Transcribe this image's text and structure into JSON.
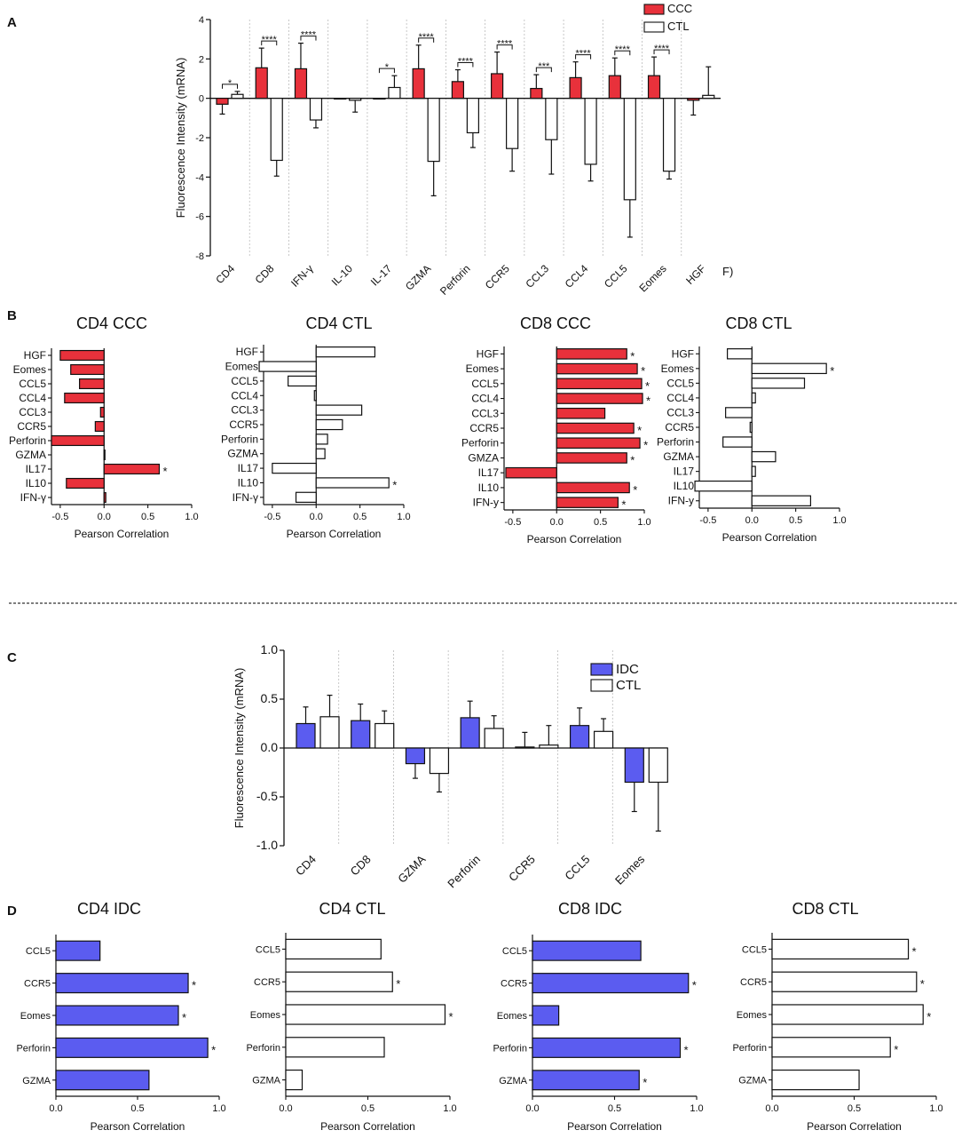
{
  "colors": {
    "ccc": "#e8313b",
    "idc": "#5b5cf0",
    "ctl": "#ffffff",
    "axis": "#111111"
  },
  "panel_labels": {
    "a": "A",
    "b": "B",
    "c": "C",
    "d": "D"
  },
  "chart_data": [
    {
      "id": "A",
      "type": "bar",
      "title": "",
      "ylabel": "Fluorescence Intensity (mRNA)",
      "ylim": [
        -8,
        4
      ],
      "yticks": [
        -8,
        -6,
        -4,
        -2,
        0,
        2,
        4
      ],
      "categories": [
        "CD4",
        "CD8",
        "IFN-γ",
        "IL-10",
        "IL-17",
        "GZMA",
        "Perforin",
        "CCR5",
        "CCL3",
        "CCL4",
        "CCL5",
        "Eomes",
        "HGF"
      ],
      "extra_label": "F)",
      "series": [
        {
          "name": "CCC",
          "values": [
            -0.3,
            1.55,
            1.5,
            0,
            0,
            1.5,
            0.85,
            1.25,
            0.5,
            1.05,
            1.15,
            1.15,
            -0.1
          ],
          "errors": [
            0.5,
            1.0,
            1.3,
            0,
            0,
            1.2,
            0.6,
            1.1,
            0.7,
            0.8,
            0.9,
            0.95,
            0.75
          ]
        },
        {
          "name": "CTL",
          "values": [
            0.2,
            -3.15,
            -1.1,
            -0.1,
            0.55,
            -3.2,
            -1.75,
            -2.55,
            -2.1,
            -3.35,
            -5.15,
            -3.7,
            0.15
          ],
          "errors": [
            0.15,
            0.8,
            0.4,
            0.6,
            0.6,
            1.75,
            0.75,
            1.15,
            1.75,
            0.85,
            1.9,
            0.4,
            1.45
          ]
        }
      ],
      "significance": [
        "*",
        "****",
        "****",
        "",
        "*",
        "****",
        "****",
        "****",
        "***",
        "****",
        "****",
        "****",
        ""
      ]
    },
    {
      "id": "B1",
      "type": "bar",
      "title": "CD4 CCC",
      "group": "CCC",
      "xlabel": "Pearson Correlation",
      "xlim": [
        -0.6,
        1.0
      ],
      "xticks": [
        "-0.5",
        "0.0",
        "0.5",
        "1.0"
      ],
      "categories": [
        "HGF",
        "Eomes",
        "CCL5",
        "CCL4",
        "CCL3",
        "CCR5",
        "Perforin",
        "GZMA",
        "IL17",
        "IL10",
        "IFN-γ"
      ],
      "values": [
        -0.5,
        -0.38,
        -0.28,
        -0.45,
        -0.04,
        -0.1,
        -0.6,
        0.0,
        0.63,
        -0.43,
        0.02
      ],
      "significance": [
        "",
        "",
        "",
        "",
        "",
        "",
        "",
        "",
        "*",
        "",
        ""
      ]
    },
    {
      "id": "B2",
      "type": "bar",
      "title": "CD4 CTL",
      "group": "CTL",
      "xlabel": "Pearson Correlation",
      "xlim": [
        -0.6,
        1.0
      ],
      "xticks": [
        "-0.5",
        "0.0",
        "0.5",
        "1.0"
      ],
      "categories": [
        "HGF",
        "Eomes",
        "CCL5",
        "CCL4",
        "CCL3",
        "CCR5",
        "Perforin",
        "GZMA",
        "IL17",
        "IL10",
        "IFN-γ"
      ],
      "values": [
        0.67,
        -0.65,
        -0.32,
        -0.02,
        0.52,
        0.3,
        0.13,
        0.1,
        -0.5,
        0.83,
        -0.23
      ],
      "significance": [
        "",
        "",
        "",
        "",
        "",
        "",
        "",
        "",
        "",
        "*",
        ""
      ]
    },
    {
      "id": "B3",
      "type": "bar",
      "title": "CD8 CCC",
      "group": "CCC",
      "xlabel": "Pearson Correlation",
      "xlim": [
        -0.6,
        1.0
      ],
      "xticks": [
        "-0.5",
        "0.0",
        "0.5",
        "1.0"
      ],
      "categories": [
        "HGF",
        "Eomes",
        "CCL5",
        "CCL4",
        "CCL3",
        "CCR5",
        "Perforin",
        "GMZA",
        "IL17",
        "IL10",
        "IFN-y"
      ],
      "values": [
        0.8,
        0.92,
        0.97,
        0.98,
        0.55,
        0.88,
        0.95,
        0.8,
        -0.58,
        0.83,
        0.7
      ],
      "significance": [
        "*",
        "*",
        "*",
        "*",
        "",
        "*",
        "*",
        "*",
        "",
        "*",
        "*"
      ]
    },
    {
      "id": "B4",
      "type": "bar",
      "title": "CD8 CTL",
      "group": "CTL",
      "xlabel": "Pearson Correlation",
      "xlim": [
        -0.6,
        1.0
      ],
      "xticks": [
        "-0.5",
        "0.0",
        "0.5",
        "1.0"
      ],
      "categories": [
        "HGF",
        "Eomes",
        "CCL5",
        "CCL4",
        "CCL3",
        "CCR5",
        "Perforin",
        "GZMA",
        "IL17",
        "IL10",
        "IFN-y"
      ],
      "values": [
        -0.28,
        0.85,
        0.6,
        0.04,
        -0.3,
        -0.02,
        -0.33,
        0.27,
        0.04,
        -0.65,
        0.67
      ],
      "significance": [
        "",
        "*",
        "",
        "",
        "",
        "",
        "",
        "",
        "",
        "",
        ""
      ]
    },
    {
      "id": "C",
      "type": "bar",
      "title": "",
      "ylabel": "Fluorescence Intensity (mRNA)",
      "ylim": [
        -1.0,
        1.0
      ],
      "yticks": [
        "-1.0",
        "-0.5",
        "0.0",
        "0.5",
        "1.0"
      ],
      "categories": [
        "CD4",
        "CD8",
        "GZMA",
        "Perforin",
        "CCR5",
        "CCL5",
        "Eomes"
      ],
      "series": [
        {
          "name": "IDC",
          "values": [
            0.25,
            0.28,
            -0.16,
            0.31,
            0.01,
            0.23,
            -0.35
          ],
          "errors": [
            0.17,
            0.17,
            0.15,
            0.17,
            0.15,
            0.18,
            0.3
          ]
        },
        {
          "name": "CTL",
          "values": [
            0.32,
            0.25,
            -0.26,
            0.2,
            0.03,
            0.17,
            -0.35
          ],
          "errors": [
            0.22,
            0.13,
            0.19,
            0.13,
            0.2,
            0.13,
            0.5
          ]
        }
      ]
    },
    {
      "id": "D1",
      "type": "bar",
      "title": "CD4 IDC",
      "group": "IDC",
      "xlabel": "Pearson Correlation",
      "xlim": [
        0,
        1.0
      ],
      "xticks": [
        "0.0",
        "0.5",
        "1.0"
      ],
      "categories": [
        "CCL5",
        "CCR5",
        "Eomes",
        "Perforin",
        "GZMA"
      ],
      "values": [
        0.27,
        0.81,
        0.75,
        0.93,
        0.57
      ],
      "significance": [
        "",
        "*",
        "*",
        "*",
        ""
      ]
    },
    {
      "id": "D2",
      "type": "bar",
      "title": "CD4 CTL",
      "group": "CTL",
      "xlabel": "Pearson Correlation",
      "xlim": [
        0,
        1.0
      ],
      "xticks": [
        "0.0",
        "0.5",
        "1.0"
      ],
      "categories": [
        "CCL5",
        "CCR5",
        "Eomes",
        "Perforin",
        "GZMA"
      ],
      "values": [
        0.58,
        0.65,
        0.97,
        0.6,
        0.1
      ],
      "significance": [
        "",
        "*",
        "*",
        "",
        ""
      ]
    },
    {
      "id": "D3",
      "type": "bar",
      "title": "CD8 IDC",
      "group": "IDC",
      "xlabel": "Pearson Correlation",
      "xlim": [
        0,
        1.0
      ],
      "xticks": [
        "0.0",
        "0.5",
        "1.0"
      ],
      "categories": [
        "CCL5",
        "CCR5",
        "Eomes",
        "Perforin",
        "GZMA"
      ],
      "values": [
        0.66,
        0.95,
        0.16,
        0.9,
        0.65
      ],
      "significance": [
        "",
        "*",
        "",
        "*",
        "*"
      ]
    },
    {
      "id": "D4",
      "type": "bar",
      "title": "CD8 CTL",
      "group": "CTL",
      "xlabel": "Pearson Correlation",
      "xlim": [
        0,
        1.0
      ],
      "xticks": [
        "0.0",
        "0.5",
        "1.0"
      ],
      "categories": [
        "CCL5",
        "CCR5",
        "Eomes",
        "Perforin",
        "GZMA"
      ],
      "values": [
        0.83,
        0.88,
        0.92,
        0.72,
        0.53
      ],
      "significance": [
        "*",
        "*",
        "*",
        "*",
        ""
      ]
    }
  ]
}
